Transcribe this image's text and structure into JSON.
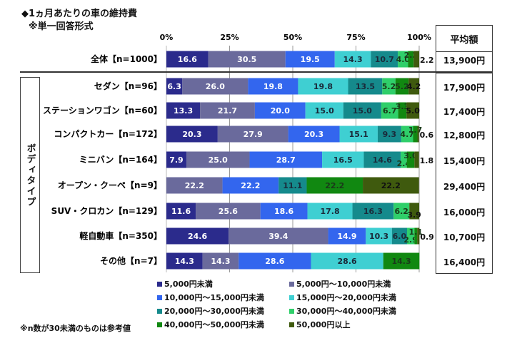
{
  "chart_data": {
    "type": "bar",
    "orientation": "horizontal-stacked-100",
    "title": "◆1ヵ月あたりの車の維持費",
    "subtitle": "※単一回答形式",
    "xlabel": "",
    "ylabel": "",
    "xlim": [
      0,
      100
    ],
    "x_ticks": [
      "0%",
      "25%",
      "50%",
      "75%",
      "100%"
    ],
    "group_label": "ボディタイプ",
    "categories": [
      "全体【n=1000】",
      "セダン【n=96】",
      "ステーションワゴン【n=60】",
      "コンパクトカー【n=172】",
      "ミニバン【n=164】",
      "オープン・クーペ【n=9】",
      "SUV・クロカン【n=129】",
      "軽自動車【n=350】",
      "その他【n=7】"
    ],
    "series": [
      {
        "name": "5,000円未満",
        "color": "#2b2b8c",
        "label_color": "#ffffff",
        "values": [
          16.6,
          6.3,
          13.3,
          20.3,
          7.9,
          0,
          11.6,
          24.6,
          14.3
        ]
      },
      {
        "name": "5,000円～10,000円未満",
        "color": "#6a6a9c",
        "label_color": "#ffffff",
        "values": [
          30.5,
          26.0,
          21.7,
          27.9,
          25.0,
          22.2,
          25.6,
          39.4,
          14.3
        ]
      },
      {
        "name": "10,000円～15,000円未満",
        "color": "#3366ee",
        "label_color": "#ffffff",
        "values": [
          19.5,
          19.8,
          20.0,
          20.3,
          28.7,
          22.2,
          18.6,
          14.9,
          28.6
        ]
      },
      {
        "name": "15,000円～20,000円未満",
        "color": "#3fcfd2",
        "label_color": "#1a2a3a",
        "values": [
          14.3,
          19.8,
          15.0,
          15.1,
          16.5,
          0,
          17.8,
          10.3,
          28.6
        ]
      },
      {
        "name": "20,000円～30,000円未満",
        "color": "#158a8c",
        "label_color": "#1a2a3a",
        "values": [
          10.7,
          13.5,
          15.0,
          9.3,
          14.6,
          11.1,
          16.3,
          6.0,
          0
        ]
      },
      {
        "name": "30,000円～40,000円未満",
        "color": "#2fcf6a",
        "label_color": "#1a3a1a",
        "values": [
          4.0,
          5.2,
          6.7,
          4.7,
          2.4,
          0,
          6.2,
          2.9,
          0
        ]
      },
      {
        "name": "40,000円～50,000円未満",
        "color": "#118811",
        "label_color": "#1a3a1a",
        "values": [
          2.2,
          5.2,
          3.3,
          1.7,
          3.0,
          22.2,
          0,
          1.1,
          14.3
        ]
      },
      {
        "name": "50,000円以上",
        "color": "#3f5a0e",
        "label_color": "#111111",
        "values": [
          2.2,
          4.2,
          5.0,
          0.6,
          1.8,
          22.2,
          3.9,
          0.9,
          0
        ]
      }
    ],
    "average_header": "平均額",
    "averages": [
      "13,900円",
      "17,900円",
      "17,400円",
      "12,800円",
      "15,400円",
      "29,400円",
      "16,000円",
      "10,700円",
      "16,400円"
    ],
    "legend_position": "bottom",
    "grid": true
  },
  "note": "※n数が30未満のものは参考値"
}
